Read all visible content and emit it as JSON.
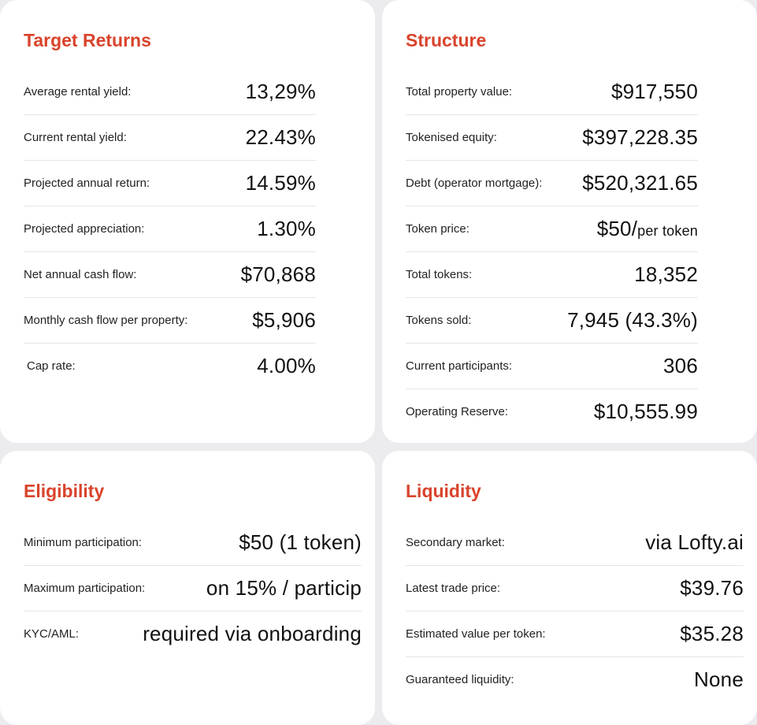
{
  "target_returns": {
    "title": "Target Returns",
    "rows": [
      {
        "label": "Average rental yield:",
        "value": "13,29%"
      },
      {
        "label": "Current rental yield:",
        "value": "22.43%"
      },
      {
        "label": "Projected annual return:",
        "value": "14.59%"
      },
      {
        "label": "Projected appreciation:",
        "value": "1.30%"
      },
      {
        "label": "Net annual cash flow:",
        "value": "$70,868"
      },
      {
        "label": "Monthly cash flow per property:",
        "value": "$5,906"
      },
      {
        "label": "Cap rate:",
        "value": "4.00%"
      }
    ]
  },
  "structure": {
    "title": "Structure",
    "rows": [
      {
        "label": "Total property value:",
        "value": "$917,550"
      },
      {
        "label": "Tokenised equity:",
        "value": "$397,228.35"
      },
      {
        "label": "Debt (operator mortgage):",
        "value": "$520,321.65"
      },
      {
        "label": "Token price:",
        "value": "$50/",
        "unit": "per token"
      },
      {
        "label": "Total tokens:",
        "value": "18,352"
      },
      {
        "label": "Tokens sold:",
        "value": "7,945 (43.3%)"
      },
      {
        "label": "Current participants:",
        "value": "306"
      },
      {
        "label": "Operating Reserve:",
        "value": "$10,555.99"
      }
    ]
  },
  "eligibility": {
    "title": "Eligibility",
    "rows": [
      {
        "label": "Minimum participation:",
        "value": "$50 (1 token)"
      },
      {
        "label": "Maximum participation:",
        "value": "on 15% / particip"
      },
      {
        "label": "KYC/AML:",
        "value": "required via onboarding"
      }
    ]
  },
  "liquidity": {
    "title": "Liquidity",
    "rows": [
      {
        "label": "Secondary market:",
        "value": "via Lofty.ai"
      },
      {
        "label": "Latest trade price:",
        "value": "$39.76"
      },
      {
        "label": "Estimated value per token:",
        "value": "$35.28"
      },
      {
        "label": "Guaranteed liquidity:",
        "value": "None"
      }
    ]
  },
  "colors": {
    "accent": "#d9432b",
    "background": "#ececee",
    "card": "#ffffff"
  }
}
